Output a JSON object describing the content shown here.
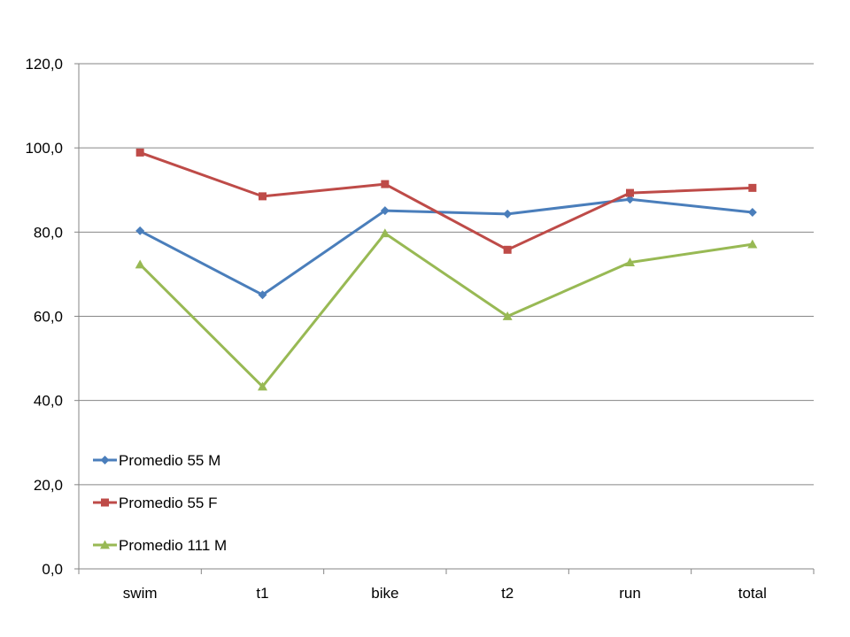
{
  "chart_data": {
    "type": "line",
    "title": "",
    "xlabel": "",
    "ylabel": "",
    "categories": [
      "swim",
      "t1",
      "bike",
      "t2",
      "run",
      "total"
    ],
    "ylim": [
      0,
      120
    ],
    "yticks": [
      0,
      20,
      40,
      60,
      80,
      100,
      120
    ],
    "ytick_labels": [
      "0,0",
      "20,0",
      "40,0",
      "60,0",
      "80,0",
      "100,0",
      "120,0"
    ],
    "grid": "horizontal",
    "legend_position": "bottom-left",
    "series": [
      {
        "name": "Promedio 55 M",
        "color": "#4a7ebb",
        "marker": "diamond",
        "values": [
          80.3,
          65.1,
          85.1,
          84.3,
          87.8,
          84.7
        ]
      },
      {
        "name": "Promedio 55 F",
        "color": "#be4b48",
        "marker": "square",
        "values": [
          98.9,
          88.5,
          91.4,
          75.8,
          89.3,
          90.5
        ]
      },
      {
        "name": "Promedio 111 M",
        "color": "#98b954",
        "marker": "triangle",
        "values": [
          72.3,
          43.3,
          79.7,
          60.0,
          72.8,
          77.1
        ]
      }
    ]
  }
}
